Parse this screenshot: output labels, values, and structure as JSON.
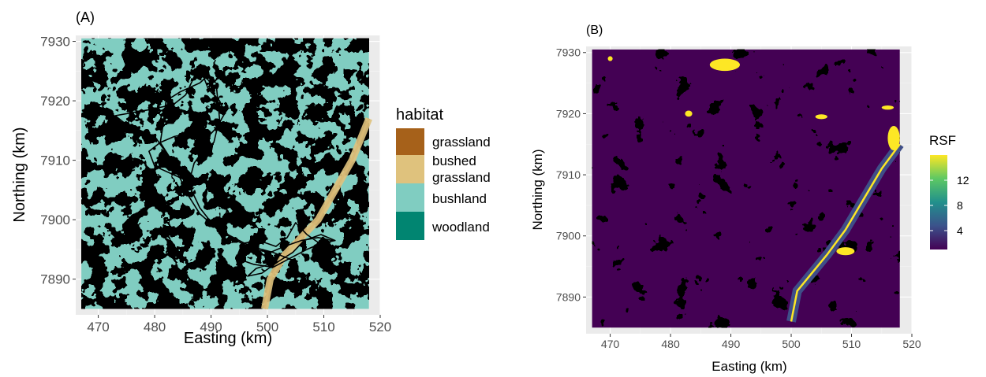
{
  "chart_data": [
    {
      "type": "raster-map",
      "tag": "(A)",
      "xlabel": "Easting (km)",
      "ylabel": "Northing (km)",
      "xlim": [
        466,
        520
      ],
      "ylim": [
        7884,
        7931
      ],
      "xticks": [
        470,
        480,
        490,
        500,
        510,
        520
      ],
      "yticks": [
        7890,
        7900,
        7910,
        7920,
        7930
      ],
      "extent": {
        "x": [
          467,
          518
        ],
        "y": [
          7885,
          7930.5
        ]
      },
      "grid": true,
      "legend": {
        "title": "habitat",
        "position": "right",
        "entries": [
          {
            "label": "grassland",
            "color": "#A6611A"
          },
          {
            "label": "bushed grassland",
            "label_lines": [
              "bushed",
              "grassland"
            ],
            "color": "#DFC27D"
          },
          {
            "label": "bushland",
            "color": "#80CDC1"
          },
          {
            "label": "woodland",
            "color": "#018571"
          }
        ]
      },
      "track_color": "#000000",
      "track": [
        [
          505,
          7893
        ],
        [
          501,
          7894.5
        ],
        [
          497,
          7895.5
        ],
        [
          494,
          7897
        ],
        [
          491,
          7898.5
        ],
        [
          488,
          7901
        ],
        [
          486,
          7904
        ],
        [
          484.5,
          7907
        ],
        [
          483,
          7910
        ],
        [
          481.5,
          7912
        ],
        [
          480,
          7914
        ],
        [
          477.5,
          7915
        ],
        [
          475,
          7916
        ],
        [
          473,
          7917.5
        ],
        [
          476,
          7918
        ],
        [
          479,
          7918.5
        ],
        [
          481.5,
          7919
        ],
        [
          483.5,
          7919.5
        ],
        [
          485.5,
          7921
        ],
        [
          486.5,
          7923
        ],
        [
          487.5,
          7925
        ],
        [
          489.5,
          7924.3
        ],
        [
          488,
          7923
        ],
        [
          484.5,
          7921.5
        ],
        [
          482,
          7920
        ],
        [
          481.5,
          7916
        ],
        [
          481,
          7913
        ],
        [
          483,
          7910
        ],
        [
          486,
          7907.5
        ],
        [
          487,
          7906
        ],
        [
          483.5,
          7907.5
        ],
        [
          480,
          7909
        ],
        [
          479,
          7911.5
        ],
        [
          481,
          7913
        ],
        [
          483.5,
          7914
        ],
        [
          486,
          7914.5
        ],
        [
          489,
          7913.5
        ],
        [
          491,
          7915.5
        ],
        [
          492.5,
          7918
        ],
        [
          491.5,
          7920
        ],
        [
          489.5,
          7922
        ],
        [
          488.5,
          7924.5
        ],
        [
          491,
          7922
        ],
        [
          491.5,
          7917
        ],
        [
          490.5,
          7913
        ],
        [
          488.5,
          7911.5
        ],
        [
          487,
          7909.5
        ],
        [
          486,
          7906
        ],
        [
          488,
          7902
        ],
        [
          490.5,
          7899
        ],
        [
          493.5,
          7897
        ],
        [
          497.5,
          7895
        ],
        [
          500.5,
          7894.5
        ],
        [
          503,
          7895.5
        ],
        [
          506,
          7896.5
        ],
        [
          509,
          7897
        ],
        [
          511.5,
          7896.5
        ],
        [
          510,
          7895.5
        ],
        [
          507,
          7897.5
        ],
        [
          505,
          7899.5
        ],
        [
          503.5,
          7897
        ],
        [
          501.5,
          7895.5
        ],
        [
          498.5,
          7896.5
        ],
        [
          495.5,
          7896
        ],
        [
          494.5,
          7893.5
        ],
        [
          497.5,
          7892.5
        ],
        [
          501,
          7892
        ],
        [
          504,
          7893.5
        ],
        [
          507,
          7895
        ],
        [
          509.5,
          7896
        ],
        [
          512,
          7896.5
        ],
        [
          509.5,
          7897.5
        ],
        [
          506.5,
          7896.5
        ],
        [
          504.5,
          7894.5
        ],
        [
          502,
          7893
        ],
        [
          499,
          7891
        ],
        [
          496.5,
          7890.5
        ],
        [
          498,
          7891.8
        ],
        [
          502,
          7893
        ]
      ]
    },
    {
      "type": "raster-map",
      "tag": "(B)",
      "xlabel": "Easting (km)",
      "ylabel": "Northing (km)",
      "xlim": [
        466,
        520
      ],
      "ylim": [
        7884,
        7931
      ],
      "xticks": [
        470,
        480,
        490,
        500,
        510,
        520
      ],
      "yticks": [
        7890,
        7900,
        7910,
        7920,
        7930
      ],
      "extent": {
        "x": [
          467,
          518
        ],
        "y": [
          7885,
          7930.5
        ]
      },
      "grid": true,
      "legend": {
        "title": "RSF",
        "position": "right",
        "colorbar": true,
        "range": [
          1,
          16
        ],
        "breaks": [
          4,
          8,
          12
        ],
        "colors": [
          "#440154",
          "#3B528B",
          "#21908C",
          "#5DC863",
          "#FDE725"
        ]
      },
      "value_classes": [
        {
          "value": 1.5,
          "color": "#440154"
        },
        {
          "value": 4.5,
          "color": "#3F4E88"
        },
        {
          "value": 16,
          "color": "#FDE725"
        }
      ]
    }
  ]
}
